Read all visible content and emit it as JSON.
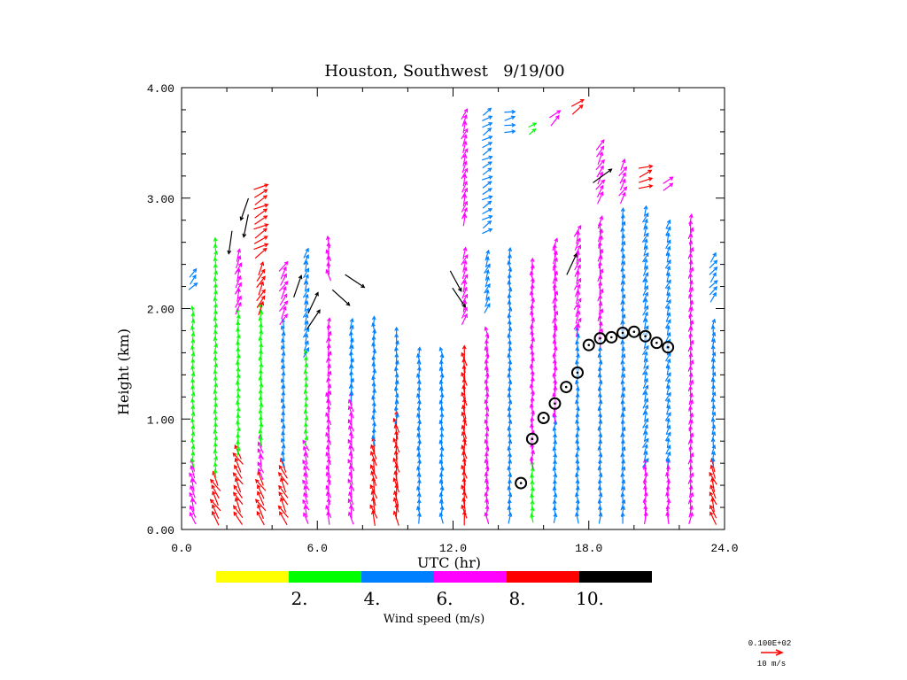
{
  "chart_data": {
    "type": "vector-profile",
    "title": "Houston, Southwest   9/19/00",
    "xlabel": "UTC (hr)",
    "ylabel": "Height (km)",
    "xlim": [
      0,
      24
    ],
    "ylim": [
      0,
      4
    ],
    "xticks": [
      "0.0",
      "6.0",
      "12.0",
      "18.0",
      "24.0"
    ],
    "xtick_values": [
      0,
      6,
      12,
      18,
      24
    ],
    "yticks": [
      "0.00",
      "1.00",
      "2.00",
      "3.00",
      "4.00"
    ],
    "ytick_values": [
      0,
      1,
      2,
      3,
      4
    ],
    "colorbar": {
      "label": "Wind speed (m/s)",
      "bins": [
        {
          "min": 0,
          "max": 2,
          "color": "#ffff00"
        },
        {
          "min": 2,
          "max": 4,
          "color": "#00ff00"
        },
        {
          "min": 4,
          "max": 6,
          "color": "#0080ff"
        },
        {
          "min": 6,
          "max": 8,
          "color": "#ff00ff"
        },
        {
          "min": 8,
          "max": 10,
          "color": "#ff0000"
        },
        {
          "min": 10,
          "max": 12,
          "color": "#000000"
        }
      ],
      "tick_labels": [
        "2.",
        "4.",
        "6.",
        "8.",
        "10."
      ]
    },
    "reference_vector": {
      "header": "0.100E+02",
      "label": "10 m/s",
      "speed": 10,
      "color": "#ff0000"
    },
    "wind_profiles": [
      {
        "hour": 0.5,
        "segments": [
          [
            0.1,
            0.6,
            7,
            340
          ],
          [
            0.6,
            2.0,
            3,
            0
          ],
          [
            2.2,
            2.35,
            5,
            40
          ]
        ]
      },
      {
        "hour": 1.5,
        "segments": [
          [
            0.1,
            0.5,
            9,
            330
          ],
          [
            0.5,
            2.6,
            3,
            0
          ]
        ]
      },
      {
        "hour": 2.5,
        "segments": [
          [
            0.1,
            0.7,
            9,
            330
          ],
          [
            0.7,
            2.0,
            3.5,
            0
          ],
          [
            2.0,
            2.5,
            7,
            20
          ],
          [
            2.6,
            3.0,
            10.5,
            200
          ]
        ]
      },
      {
        "hour": 3.5,
        "segments": [
          [
            0.1,
            0.5,
            9,
            330
          ],
          [
            0.5,
            0.8,
            6,
            340
          ],
          [
            0.8,
            2.0,
            3.5,
            0
          ],
          [
            2.0,
            2.4,
            8,
            30
          ],
          [
            2.5,
            3.1,
            9,
            60
          ]
        ]
      },
      {
        "hour": 4.5,
        "segments": [
          [
            0.1,
            0.6,
            9,
            330
          ],
          [
            0.6,
            1.9,
            4,
            350
          ],
          [
            1.9,
            2.4,
            7,
            30
          ]
        ]
      },
      {
        "hour": 5.5,
        "segments": [
          [
            0.1,
            0.8,
            6,
            340
          ],
          [
            0.8,
            1.6,
            3,
            0
          ],
          [
            1.6,
            2.5,
            5,
            20
          ],
          [
            1.9,
            2.2,
            10.5,
            30
          ]
        ]
      },
      {
        "hour": 6.5,
        "segments": [
          [
            0.1,
            1.2,
            7,
            350
          ],
          [
            1.2,
            1.9,
            6,
            10
          ],
          [
            2.3,
            2.6,
            6,
            350
          ]
        ]
      },
      {
        "hour": 7.5,
        "segments": [
          [
            0.1,
            1.2,
            7,
            345
          ],
          [
            1.2,
            1.9,
            5,
            10
          ],
          [
            2.1,
            2.3,
            10.5,
            130
          ]
        ]
      },
      {
        "hour": 8.5,
        "segments": [
          [
            0.1,
            0.8,
            9,
            345
          ],
          [
            0.8,
            1.9,
            5,
            0
          ]
        ]
      },
      {
        "hour": 9.5,
        "segments": [
          [
            0.1,
            1.0,
            9,
            350
          ],
          [
            1.0,
            1.8,
            5,
            5
          ]
        ]
      },
      {
        "hour": 10.5,
        "segments": [
          [
            0.1,
            1.6,
            5,
            355
          ]
        ]
      },
      {
        "hour": 11.5,
        "segments": [
          [
            0.1,
            1.6,
            5,
            355
          ]
        ]
      },
      {
        "hour": 12.5,
        "segments": [
          [
            0.1,
            1.6,
            8,
            350
          ],
          [
            1.9,
            2.5,
            6,
            20
          ],
          [
            2.1,
            2.3,
            10.5,
            140
          ],
          [
            2.8,
            3.8,
            6,
            20
          ]
        ]
      },
      {
        "hour": 13.5,
        "segments": [
          [
            0.1,
            1.8,
            6,
            355
          ],
          [
            2.0,
            2.5,
            5,
            20
          ],
          [
            2.7,
            3.8,
            5,
            60
          ]
        ]
      },
      {
        "hour": 14.5,
        "segments": [
          [
            0.1,
            2.5,
            5,
            0
          ],
          [
            3.6,
            3.8,
            5,
            80
          ]
        ]
      },
      {
        "hour": 15.5,
        "segments": [
          [
            0.1,
            0.6,
            3,
            0
          ],
          [
            0.6,
            2.4,
            6,
            0
          ],
          [
            3.6,
            3.7,
            3,
            60
          ]
        ]
      },
      {
        "hour": 16.5,
        "segments": [
          [
            0.1,
            1.0,
            4,
            0
          ],
          [
            1.0,
            1.8,
            6,
            0
          ],
          [
            1.8,
            2.6,
            7,
            10
          ],
          [
            3.7,
            3.8,
            7,
            45
          ]
        ]
      },
      {
        "hour": 17.5,
        "segments": [
          [
            0.1,
            1.8,
            5,
            0
          ],
          [
            1.8,
            2.7,
            7,
            20
          ],
          [
            2.4,
            2.5,
            10.5,
            30
          ],
          [
            3.8,
            3.9,
            8,
            50
          ]
        ]
      },
      {
        "hour": 18.5,
        "segments": [
          [
            0.1,
            1.7,
            5,
            0
          ],
          [
            1.7,
            2.8,
            7,
            10
          ],
          [
            3.0,
            3.5,
            7,
            30
          ],
          [
            3.2,
            3.3,
            10.5,
            60
          ]
        ]
      },
      {
        "hour": 19.5,
        "segments": [
          [
            0.1,
            2.9,
            5,
            10
          ],
          [
            3.0,
            3.3,
            6,
            30
          ]
        ]
      },
      {
        "hour": 20.5,
        "segments": [
          [
            0.1,
            0.6,
            6,
            0
          ],
          [
            0.6,
            2.9,
            5,
            20
          ],
          [
            3.1,
            3.3,
            8,
            70
          ]
        ]
      },
      {
        "hour": 21.5,
        "segments": [
          [
            0.1,
            0.6,
            6,
            0
          ],
          [
            0.6,
            2.8,
            4,
            20
          ],
          [
            3.1,
            3.2,
            6,
            60
          ]
        ]
      },
      {
        "hour": 22.5,
        "segments": [
          [
            0.1,
            2.8,
            6,
            10
          ]
        ]
      },
      {
        "hour": 23.5,
        "segments": [
          [
            0.1,
            0.6,
            8,
            340
          ],
          [
            0.6,
            1.9,
            4,
            10
          ],
          [
            2.1,
            2.5,
            5,
            40
          ]
        ]
      }
    ],
    "mixing_height_series": {
      "x": [
        15.0,
        15.5,
        16.0,
        16.5,
        17.0,
        17.5,
        18.0,
        18.5,
        19.0,
        19.5,
        20.0,
        20.5,
        21.0,
        21.5
      ],
      "y": [
        0.42,
        0.82,
        1.01,
        1.14,
        1.29,
        1.42,
        1.67,
        1.73,
        1.74,
        1.78,
        1.79,
        1.75,
        1.69,
        1.65
      ]
    }
  }
}
